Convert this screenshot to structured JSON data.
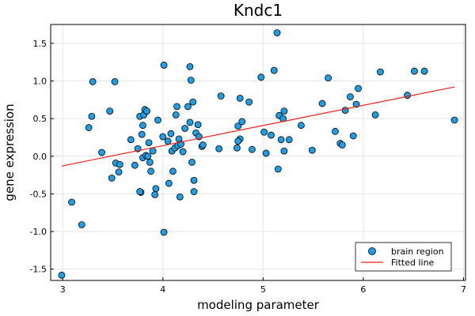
{
  "chart_data": {
    "type": "scatter",
    "title": "Kndc1",
    "xlabel": "modeling parameter",
    "ylabel": "gene expression",
    "xlim": [
      2.88,
      7.02
    ],
    "ylim": [
      -1.65,
      1.75
    ],
    "xticks": [
      3,
      4,
      5,
      6,
      7
    ],
    "xtick_labels": [
      "3",
      "4",
      "5",
      "6",
      "7"
    ],
    "yticks": [
      -1.5,
      -1.0,
      -0.5,
      0.0,
      0.5,
      1.0,
      1.5
    ],
    "ytick_labels": [
      "-1.5",
      "-1.0",
      "-0.5",
      "0.0",
      "0.5",
      "1.0",
      "1.5"
    ],
    "grid": true,
    "legend_position": "bottom-right",
    "colors": {
      "points": "#1f9ee8",
      "point_edge": "#000000",
      "line": "#e8211b",
      "grid": "#e6e6e6"
    },
    "series": [
      {
        "name": "brain region",
        "kind": "scatter",
        "x": [
          2.99,
          3.09,
          3.19,
          3.26,
          3.3,
          3.29,
          3.39,
          3.47,
          3.49,
          3.53,
          3.52,
          3.56,
          3.57,
          3.68,
          3.75,
          3.77,
          3.78,
          3.81,
          3.82,
          3.8,
          3.77,
          3.79,
          3.8,
          3.83,
          3.85,
          3.86,
          3.87,
          3.88,
          3.9,
          3.92,
          3.93,
          4.0,
          4.01,
          4.01,
          4.06,
          4.08,
          4.09,
          4.1,
          4.12,
          4.13,
          4.14,
          4.15,
          4.16,
          4.17,
          4.2,
          4.22,
          4.25,
          4.27,
          4.28,
          4.27,
          4.29,
          4.3,
          4.31,
          4.31,
          4.33,
          4.36,
          4.39,
          4.56,
          4.58,
          4.74,
          4.77,
          4.75,
          4.77,
          4.79,
          4.86,
          4.89,
          4.98,
          5.01,
          5.03,
          5.08,
          5.11,
          5.14,
          5.16,
          5.18,
          5.21,
          5.21,
          5.26,
          5.38,
          5.49,
          5.59,
          5.65,
          5.72,
          5.77,
          5.79,
          5.82,
          5.87,
          5.9,
          5.93,
          5.95,
          6.12,
          6.17,
          6.44,
          6.51,
          6.61,
          6.91,
          5.15,
          5.2,
          4.4,
          4.75,
          4.35,
          3.95,
          4.18,
          3.72,
          3.84,
          4.05
        ],
        "y": [
          -1.58,
          -0.61,
          -0.91,
          0.38,
          0.99,
          0.53,
          0.05,
          0.6,
          -0.29,
          -0.09,
          0.99,
          -0.21,
          -0.11,
          0.22,
          0.1,
          0.53,
          -0.48,
          0.55,
          0.62,
          0.41,
          -0.47,
          0.29,
          -0.02,
          0.01,
          0.0,
          0.18,
          -0.08,
          -0.2,
          0.07,
          -0.51,
          -0.43,
          0.26,
          1.21,
          -1.01,
          -0.36,
          0.3,
          0.07,
          -0.2,
          0.11,
          0.55,
          0.66,
          0.14,
          0.23,
          -0.54,
          0.06,
          0.37,
          0.66,
          1.19,
          1.01,
          0.45,
          -0.08,
          0.72,
          -0.32,
          -0.47,
          0.31,
          0.26,
          0.13,
          0.1,
          0.8,
          0.11,
          0.23,
          0.4,
          0.77,
          0.46,
          0.72,
          0.09,
          1.05,
          0.32,
          0.04,
          0.28,
          1.14,
          1.64,
          0.54,
          0.22,
          0.07,
          0.6,
          0.22,
          0.41,
          0.08,
          0.7,
          1.04,
          0.33,
          0.17,
          0.15,
          0.61,
          0.79,
          0.27,
          0.69,
          0.9,
          0.55,
          1.12,
          0.81,
          1.13,
          1.13,
          0.48,
          -0.17,
          0.5,
          0.15,
          0.2,
          0.42,
          0.48,
          0.16,
          -0.12,
          0.6,
          0.2
        ]
      },
      {
        "name": "Fitted line",
        "kind": "line",
        "x": [
          2.99,
          6.91
        ],
        "y": [
          -0.13,
          0.92
        ]
      }
    ]
  }
}
